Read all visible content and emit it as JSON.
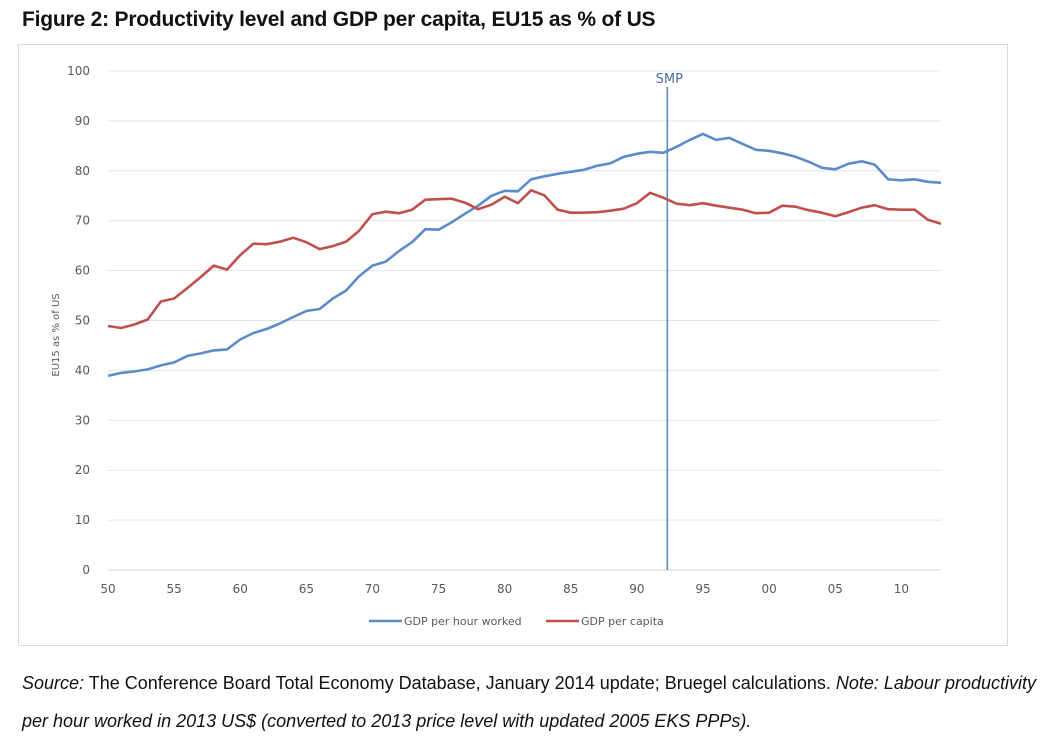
{
  "figure": {
    "title": "Figure 2: Productivity level and GDP per capita, EU15 as % of US"
  },
  "source": {
    "label": "Source:",
    "text": " The Conference Board Total Economy Database, January 2014 update; Bruegel calculations. ",
    "note_label": "Note:",
    "note_text": " Labour productivity per hour worked in 2013 US$ (converted to 2013 price level with updated 2005 EKS PPPs)."
  },
  "chart_data": {
    "type": "line",
    "title": "Productivity level and GDP per capita, EU15 as % of US",
    "xlabel": "",
    "ylabel": "EU15 as % of US",
    "xlim": [
      1950,
      2013
    ],
    "ylim": [
      0,
      100
    ],
    "yticks": [
      0,
      10,
      20,
      30,
      40,
      50,
      60,
      70,
      80,
      90,
      100
    ],
    "xticks": [
      {
        "value": 1950,
        "label": "50"
      },
      {
        "value": 1955,
        "label": "55"
      },
      {
        "value": 1960,
        "label": "60"
      },
      {
        "value": 1965,
        "label": "65"
      },
      {
        "value": 1970,
        "label": "70"
      },
      {
        "value": 1975,
        "label": "75"
      },
      {
        "value": 1980,
        "label": "80"
      },
      {
        "value": 1985,
        "label": "85"
      },
      {
        "value": 1990,
        "label": "90"
      },
      {
        "value": 1995,
        "label": "95"
      },
      {
        "value": 2000,
        "label": "00"
      },
      {
        "value": 2005,
        "label": "05"
      },
      {
        "value": 2010,
        "label": "10"
      }
    ],
    "grid": true,
    "legend_position": "bottom",
    "annotation": {
      "label": "SMP",
      "x": 1992.3,
      "color": "#5b8bbf"
    },
    "x": [
      1950,
      1951,
      1952,
      1953,
      1954,
      1955,
      1956,
      1957,
      1958,
      1959,
      1960,
      1961,
      1962,
      1963,
      1964,
      1965,
      1966,
      1967,
      1968,
      1969,
      1970,
      1971,
      1972,
      1973,
      1974,
      1975,
      1976,
      1977,
      1978,
      1979,
      1980,
      1981,
      1982,
      1983,
      1984,
      1985,
      1986,
      1987,
      1988,
      1989,
      1990,
      1991,
      1992,
      1993,
      1994,
      1995,
      1996,
      1997,
      1998,
      1999,
      2000,
      2001,
      2002,
      2003,
      2004,
      2005,
      2006,
      2007,
      2008,
      2009,
      2010,
      2011,
      2012,
      2013
    ],
    "series": [
      {
        "name": "GDP per hour worked",
        "color": "#5b8bc9",
        "values": [
          38.9,
          39.5,
          39.8,
          40.2,
          41.0,
          41.6,
          42.9,
          43.4,
          44.0,
          44.2,
          46.2,
          47.5,
          48.3,
          49.4,
          50.7,
          51.9,
          52.3,
          54.4,
          56.0,
          58.9,
          61.0,
          61.8,
          63.9,
          65.7,
          68.3,
          68.2,
          69.7,
          71.4,
          73.0,
          75.0,
          76.0,
          75.9,
          78.3,
          78.9,
          79.4,
          79.8,
          80.2,
          81.0,
          81.5,
          82.8,
          83.4,
          83.8,
          83.6,
          84.8,
          86.2,
          87.4,
          86.2,
          86.6,
          85.4,
          84.2,
          84.0,
          83.5,
          82.8,
          81.8,
          80.6,
          80.3,
          81.4,
          81.9,
          81.2,
          78.3,
          78.1,
          78.3,
          77.8,
          77.6
        ]
      },
      {
        "name": "GDP per capita",
        "color": "#c0504d",
        "values": [
          48.9,
          48.5,
          49.2,
          50.2,
          53.8,
          54.4,
          56.5,
          58.7,
          61.0,
          60.2,
          63.1,
          65.4,
          65.3,
          65.8,
          66.6,
          65.7,
          64.3,
          64.9,
          65.8,
          68.0,
          71.3,
          71.8,
          71.5,
          72.2,
          74.2,
          74.3,
          74.4,
          73.6,
          72.3,
          73.2,
          74.8,
          73.5,
          76.1,
          75.1,
          72.2,
          71.6,
          71.6,
          71.7,
          72.0,
          72.4,
          73.5,
          75.6,
          74.6,
          73.4,
          73.1,
          73.5,
          73.0,
          72.6,
          72.2,
          71.5,
          71.6,
          73.0,
          72.8,
          72.1,
          71.6,
          70.9,
          71.7,
          72.6,
          73.1,
          72.3,
          72.2,
          72.2,
          70.2,
          69.4
        ]
      }
    ]
  }
}
